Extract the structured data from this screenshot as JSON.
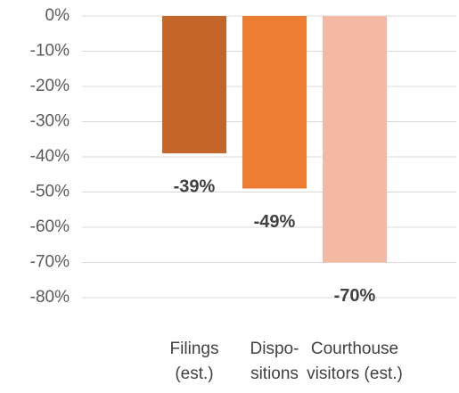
{
  "chart_data": {
    "type": "bar",
    "categories": [
      [
        "Filings",
        "(est.)"
      ],
      [
        "Dispo-",
        "sitions"
      ],
      [
        "Courthouse",
        "visitors (est.)"
      ]
    ],
    "values": [
      -39,
      -49,
      -70
    ],
    "value_labels": [
      "-39%",
      "-49%",
      "-70%"
    ],
    "colors": [
      "#c4652a",
      "#ed7d31",
      "#f4b9a2"
    ],
    "ylim": [
      -80,
      0
    ],
    "yticks": [
      {
        "value": 0,
        "label": "0%"
      },
      {
        "value": -10,
        "label": "-10%"
      },
      {
        "value": -20,
        "label": "-20%"
      },
      {
        "value": -30,
        "label": "-30%"
      },
      {
        "value": -40,
        "label": "-40%"
      },
      {
        "value": -50,
        "label": "-50%"
      },
      {
        "value": -60,
        "label": "-60%"
      },
      {
        "value": -70,
        "label": "-70%"
      },
      {
        "value": -80,
        "label": "-80%"
      }
    ],
    "grid": true
  }
}
